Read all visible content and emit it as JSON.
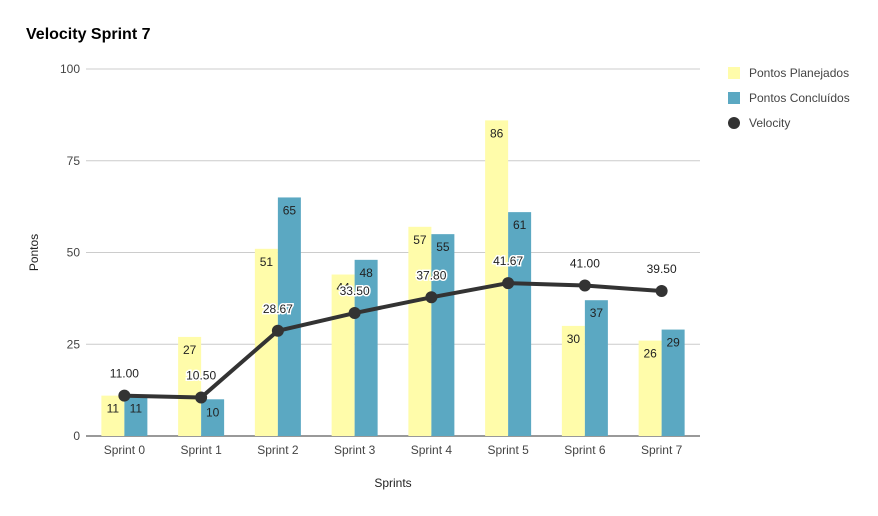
{
  "chart_data": {
    "type": "bar",
    "title": "Velocity Sprint 7",
    "xlabel": "Sprints",
    "ylabel": "Pontos",
    "ylim": [
      0,
      100
    ],
    "yticks": [
      "0",
      "25",
      "50",
      "75",
      "100"
    ],
    "ytick_values": [
      0,
      25,
      50,
      75,
      100
    ],
    "categories": [
      "Sprint 0",
      "Sprint 1",
      "Sprint 2",
      "Sprint 3",
      "Sprint 4",
      "Sprint 5",
      "Sprint 6",
      "Sprint 7"
    ],
    "series": [
      {
        "name": "Pontos Planejados",
        "type": "bar",
        "color": "#fffcaa",
        "values": [
          11,
          27,
          51,
          44,
          57,
          86,
          30,
          26
        ],
        "labels": [
          "11",
          "27",
          "51",
          "44",
          "57",
          "86",
          "30",
          "26"
        ]
      },
      {
        "name": "Pontos Concluídos",
        "type": "bar",
        "color": "#5ba8c2",
        "values": [
          11,
          10,
          65,
          48,
          55,
          61,
          37,
          29
        ],
        "labels": [
          "11",
          "10",
          "65",
          "48",
          "55",
          "61",
          "37",
          "29"
        ]
      },
      {
        "name": "Velocity",
        "type": "line",
        "color": "#333333",
        "values": [
          11.0,
          10.5,
          28.67,
          33.5,
          37.8,
          41.67,
          41.0,
          39.5
        ],
        "labels": [
          "11.00",
          "10.50",
          "28.67",
          "33.50",
          "37.80",
          "41.67",
          "41.00",
          "39.50"
        ]
      }
    ],
    "legend_position": "right"
  }
}
